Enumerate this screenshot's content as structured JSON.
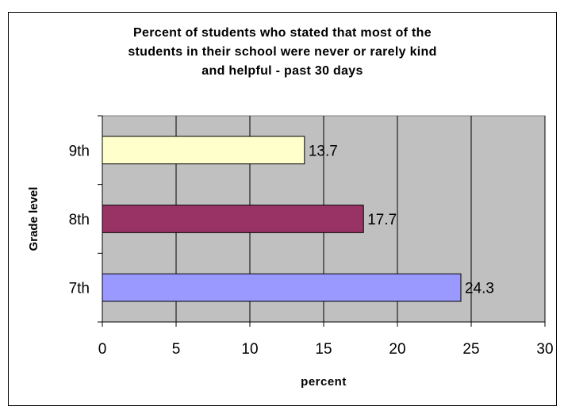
{
  "chart_data": {
    "type": "bar",
    "orientation": "horizontal",
    "title_lines": [
      "Percent of students who stated that most of the",
      "students in their school were never or rarely kind",
      "and helpful - past 30 days"
    ],
    "categories": [
      "7th",
      "8th",
      "9th"
    ],
    "values": [
      24.3,
      17.7,
      13.7
    ],
    "value_labels": [
      "24.3",
      "17.7",
      "13.7"
    ],
    "bar_colors": [
      "#9999ff",
      "#993366",
      "#ffffcc"
    ],
    "xlabel": "percent",
    "ylabel": "Grade level",
    "xlim": [
      0,
      30
    ],
    "xticks": [
      "0",
      "5",
      "10",
      "15",
      "20",
      "25",
      "30"
    ],
    "grid": true,
    "plot_background": "#c0c0c0",
    "legend": "none"
  }
}
